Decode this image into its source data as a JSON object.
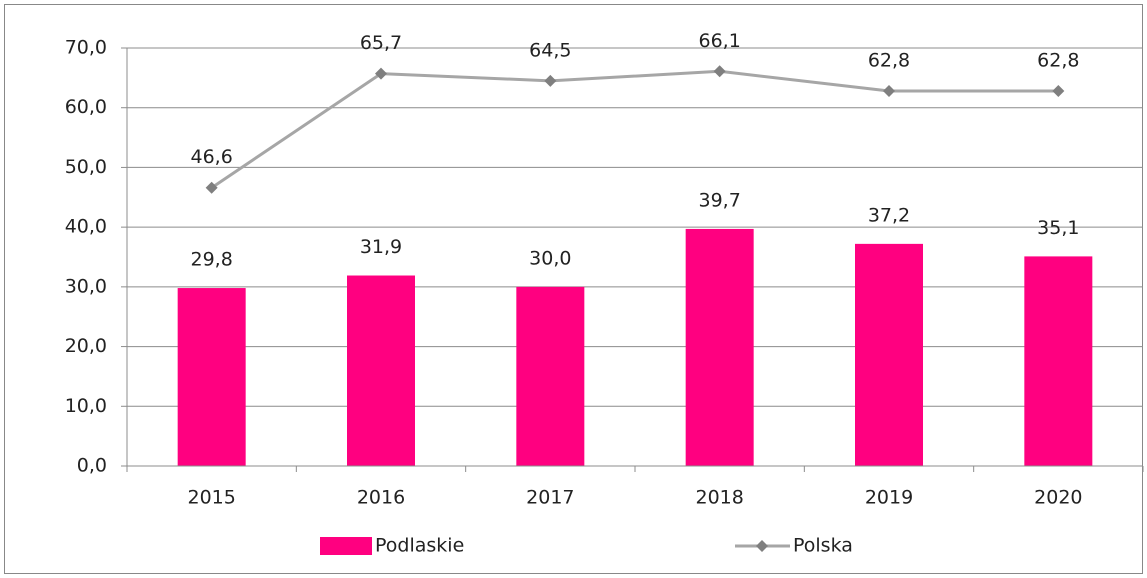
{
  "chart_data": {
    "type": "bar",
    "categories": [
      "2015",
      "2016",
      "2017",
      "2018",
      "2019",
      "2020"
    ],
    "series": [
      {
        "name": "Podlaskie",
        "type": "bar",
        "color": "#ff0080",
        "values": [
          29.8,
          31.9,
          30.0,
          39.7,
          37.2,
          35.1
        ],
        "value_labels": [
          "29,8",
          "31,9",
          "30,0",
          "39,7",
          "37,2",
          "35,1"
        ]
      },
      {
        "name": "Polska",
        "type": "line",
        "color": "#a6a6a6",
        "marker_color": "#7f7f7f",
        "values": [
          46.6,
          65.7,
          64.5,
          66.1,
          62.8,
          62.8
        ],
        "value_labels": [
          "46,6",
          "65,7",
          "64,5",
          "66,1",
          "62,8",
          "62,8"
        ]
      }
    ],
    "ylim": [
      0,
      70
    ],
    "yticks": [
      {
        "value": 0,
        "label": "0,0"
      },
      {
        "value": 10,
        "label": "10,0"
      },
      {
        "value": 20,
        "label": "20,0"
      },
      {
        "value": 30,
        "label": "30,0"
      },
      {
        "value": 40,
        "label": "40,0"
      },
      {
        "value": 50,
        "label": "50,0"
      },
      {
        "value": 60,
        "label": "60,0"
      },
      {
        "value": 70,
        "label": "70,0"
      }
    ],
    "grid": true,
    "legend": "bottom"
  }
}
